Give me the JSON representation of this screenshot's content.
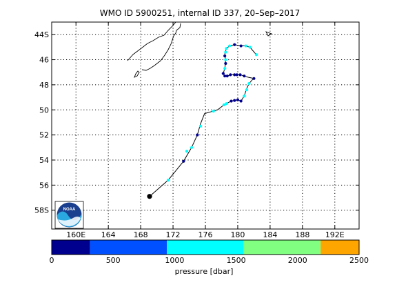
{
  "map": {
    "title": "WMO ID 5900251, internal ID 337, 20–Sep–2017",
    "lon_range": [
      157,
      195
    ],
    "lat_range": [
      -59.5,
      -43
    ],
    "lat_tick_labels": [
      {
        "lat": -44,
        "label": "44S"
      },
      {
        "lat": -46,
        "label": "46"
      },
      {
        "lat": -48,
        "label": "48"
      },
      {
        "lat": -50,
        "label": "50"
      },
      {
        "lat": -52,
        "label": "52"
      },
      {
        "lat": -54,
        "label": "54"
      },
      {
        "lat": -56,
        "label": "56"
      },
      {
        "lat": -58,
        "label": "58S"
      }
    ],
    "lon_tick_labels": [
      {
        "lon": 160,
        "label": "160E"
      },
      {
        "lon": 164,
        "label": "164"
      },
      {
        "lon": 168,
        "label": "168"
      },
      {
        "lon": 172,
        "label": "172"
      },
      {
        "lon": 176,
        "label": "176"
      },
      {
        "lon": 180,
        "label": "180"
      },
      {
        "lon": 184,
        "label": "184"
      },
      {
        "lon": 188,
        "label": "188"
      },
      {
        "lon": 192,
        "label": "192E"
      }
    ],
    "grid": true,
    "logo_text": "NOAA",
    "colors": {
      "track": "#000000",
      "coast": "#000000",
      "grid": "#000000"
    }
  },
  "chart_data": {
    "type": "scatter",
    "track": [
      [
        169.1,
        -56.9
      ],
      [
        171.4,
        -55.6
      ],
      [
        173.3,
        -54.1
      ],
      [
        174.3,
        -53.0
      ],
      [
        175.0,
        -52.0
      ],
      [
        175.4,
        -51.1
      ],
      [
        175.9,
        -50.3
      ],
      [
        177.5,
        -50.0
      ],
      [
        178.3,
        -49.6
      ],
      [
        178.6,
        -49.5
      ],
      [
        179.2,
        -49.3
      ],
      [
        180.0,
        -49.2
      ],
      [
        180.4,
        -49.3
      ],
      [
        180.8,
        -48.9
      ],
      [
        181.1,
        -48.3
      ],
      [
        181.4,
        -47.9
      ],
      [
        181.8,
        -47.6
      ],
      [
        182.0,
        -47.5
      ],
      [
        181.3,
        -47.4
      ],
      [
        180.8,
        -47.3
      ],
      [
        180.3,
        -47.2
      ],
      [
        179.6,
        -47.2
      ],
      [
        179.1,
        -47.2
      ],
      [
        178.7,
        -47.3
      ],
      [
        178.4,
        -47.3
      ],
      [
        178.2,
        -47.1
      ],
      [
        178.4,
        -46.7
      ],
      [
        178.5,
        -46.1
      ],
      [
        178.4,
        -45.5
      ],
      [
        178.6,
        -45.1
      ],
      [
        179.0,
        -44.9
      ],
      [
        179.6,
        -44.8
      ],
      [
        180.4,
        -44.9
      ],
      [
        181.0,
        -44.9
      ],
      [
        181.5,
        -45.0
      ],
      [
        181.9,
        -45.3
      ],
      [
        182.3,
        -45.6
      ]
    ],
    "start_point": [
      169.1,
      -56.9
    ],
    "profile_points": [
      {
        "lon": 171.4,
        "lat": -55.6,
        "pressure": 1000
      },
      {
        "lon": 173.3,
        "lat": -54.1,
        "pressure": 0
      },
      {
        "lon": 173.7,
        "lat": -53.3,
        "pressure": 1300
      },
      {
        "lon": 174.3,
        "lat": -53.0,
        "pressure": 1300
      },
      {
        "lon": 175.0,
        "lat": -52.0,
        "pressure": 0
      },
      {
        "lon": 175.4,
        "lat": -51.3,
        "pressure": 1000
      },
      {
        "lon": 177.0,
        "lat": -50.1,
        "pressure": 1300
      },
      {
        "lon": 178.3,
        "lat": -49.6,
        "pressure": 1000
      },
      {
        "lon": 178.6,
        "lat": -49.5,
        "pressure": 1300
      },
      {
        "lon": 179.2,
        "lat": -49.3,
        "pressure": 0
      },
      {
        "lon": 179.6,
        "lat": -49.25,
        "pressure": 0
      },
      {
        "lon": 180.0,
        "lat": -49.2,
        "pressure": 0
      },
      {
        "lon": 180.4,
        "lat": -49.3,
        "pressure": 0
      },
      {
        "lon": 180.8,
        "lat": -48.9,
        "pressure": 1300
      },
      {
        "lon": 181.1,
        "lat": -48.4,
        "pressure": 1300
      },
      {
        "lon": 181.4,
        "lat": -47.9,
        "pressure": 1300
      },
      {
        "lon": 182.0,
        "lat": -47.5,
        "pressure": 0
      },
      {
        "lon": 180.8,
        "lat": -47.3,
        "pressure": 0
      },
      {
        "lon": 180.3,
        "lat": -47.2,
        "pressure": 0
      },
      {
        "lon": 179.9,
        "lat": -47.2,
        "pressure": 0
      },
      {
        "lon": 179.6,
        "lat": -47.2,
        "pressure": 0
      },
      {
        "lon": 179.1,
        "lat": -47.2,
        "pressure": 0
      },
      {
        "lon": 178.7,
        "lat": -47.3,
        "pressure": 0
      },
      {
        "lon": 178.4,
        "lat": -47.3,
        "pressure": 0
      },
      {
        "lon": 178.2,
        "lat": -47.1,
        "pressure": 0
      },
      {
        "lon": 178.4,
        "lat": -46.7,
        "pressure": 1300
      },
      {
        "lon": 178.5,
        "lat": -46.3,
        "pressure": 0
      },
      {
        "lon": 178.5,
        "lat": -46.0,
        "pressure": 1300
      },
      {
        "lon": 178.4,
        "lat": -45.7,
        "pressure": 0
      },
      {
        "lon": 178.5,
        "lat": -45.4,
        "pressure": 1300
      },
      {
        "lon": 178.6,
        "lat": -45.1,
        "pressure": 1000
      },
      {
        "lon": 179.0,
        "lat": -44.9,
        "pressure": 1300
      },
      {
        "lon": 179.6,
        "lat": -44.8,
        "pressure": 0
      },
      {
        "lon": 180.4,
        "lat": -44.9,
        "pressure": 0
      },
      {
        "lon": 181.0,
        "lat": -44.9,
        "pressure": 1300
      },
      {
        "lon": 181.5,
        "lat": -45.0,
        "pressure": 1300
      },
      {
        "lon": 182.3,
        "lat": -45.6,
        "pressure": 1300
      }
    ],
    "colorbar": {
      "label": "pressure [dbar]",
      "range": [
        0,
        2500
      ],
      "tick_labels": [
        "0",
        "500",
        "1000",
        "1500",
        "2000",
        "2500"
      ],
      "segments": [
        {
          "from": 0,
          "to": 312,
          "color": "#00008f"
        },
        {
          "from": 312,
          "to": 937,
          "color": "#0050ff"
        },
        {
          "from": 937,
          "to": 1562,
          "color": "#00ffff"
        },
        {
          "from": 1562,
          "to": 2187,
          "color": "#80ff80"
        },
        {
          "from": 2187,
          "to": 2500,
          "color": "#ffa500"
        }
      ]
    }
  }
}
